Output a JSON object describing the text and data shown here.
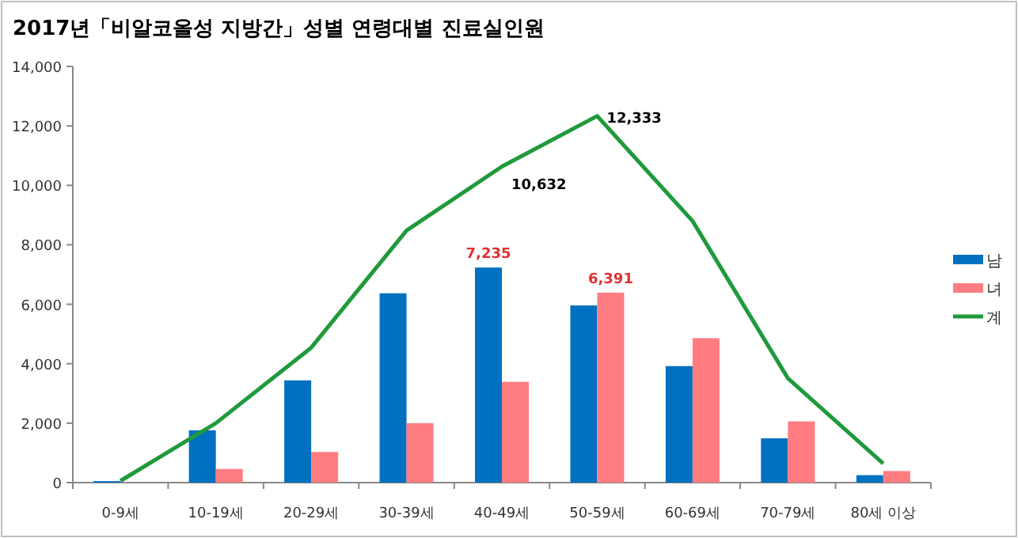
{
  "chart_data": {
    "type": "bar",
    "title": "2017년「비알코올성 지방간」성별 연령대별 진료실인원",
    "categories": [
      "0-9세",
      "10-19세",
      "20-29세",
      "30-39세",
      "40-49세",
      "50-59세",
      "60-69세",
      "70-79세",
      "80세 이상"
    ],
    "series": [
      {
        "name": "남",
        "color": "#0070c0",
        "values": [
          50,
          1760,
          3440,
          6370,
          7235,
          5960,
          3920,
          1490,
          250
        ],
        "value_labels": [
          null,
          null,
          null,
          null,
          "7,235",
          null,
          null,
          null,
          null
        ]
      },
      {
        "name": "녀",
        "color": "#ff7c80",
        "values": [
          null,
          460,
          1030,
          2000,
          3390,
          6391,
          4860,
          2060,
          390
        ],
        "value_labels": [
          null,
          null,
          null,
          null,
          null,
          "6,391",
          null,
          null,
          null
        ]
      },
      {
        "name": "계",
        "type": "line",
        "color": "#1f9a3c",
        "values": [
          60,
          2000,
          4540,
          8480,
          10632,
          12333,
          8800,
          3510,
          640
        ],
        "value_labels": [
          null,
          null,
          null,
          null,
          "10,632",
          "12,333",
          null,
          null,
          null
        ]
      }
    ],
    "ylim": [
      0,
      14000
    ],
    "yticks": [
      {
        "value": 0,
        "label": "0"
      },
      {
        "value": 2000,
        "label": "2,000"
      },
      {
        "value": 4000,
        "label": "4,000"
      },
      {
        "value": 6000,
        "label": "6,000"
      },
      {
        "value": 8000,
        "label": "8,000"
      },
      {
        "value": 10000,
        "label": "10,000"
      },
      {
        "value": 12000,
        "label": "12,000"
      },
      {
        "value": 14000,
        "label": "14,000"
      }
    ],
    "legend": "right",
    "grid": false,
    "marker": "none"
  }
}
